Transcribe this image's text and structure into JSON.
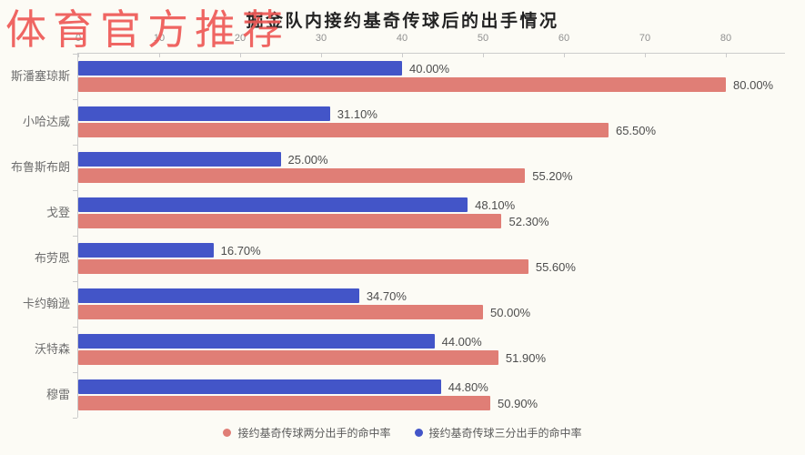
{
  "watermark": {
    "text": "体育官方推荐",
    "color": "#ee5956"
  },
  "chart_data": {
    "type": "bar",
    "orientation": "horizontal",
    "title": "掘金队内接约基奇传球后的出手情况",
    "categories": [
      "斯潘塞琼斯",
      "小哈达威",
      "布鲁斯布朗",
      "戈登",
      "布劳恩",
      "卡约翰逊",
      "沃特森",
      "穆雷"
    ],
    "series": [
      {
        "name": "接约基奇传球三分出手的命中率",
        "color": "#4355c8",
        "values": [
          40,
          31.1,
          25,
          48.1,
          16.7,
          34.7,
          44,
          44.8
        ],
        "labels": [
          "40.00%",
          "31.10%",
          "25.00%",
          "48.10%",
          "16.70%",
          "34.70%",
          "44.00%",
          "44.80%"
        ]
      },
      {
        "name": "接约基奇传球两分出手的命中率",
        "color": "#e07e76",
        "values": [
          80,
          65.5,
          55.2,
          52.3,
          55.6,
          50,
          51.9,
          50.9
        ],
        "labels": [
          "80.00%",
          "65.50%",
          "55.20%",
          "52.30%",
          "55.60%",
          "50.00%",
          "51.90%",
          "50.90%"
        ]
      }
    ],
    "x_axis": {
      "position": "top",
      "ticks": [
        0,
        10,
        20,
        30,
        40,
        50,
        60,
        70,
        80
      ],
      "max": 87.3
    },
    "grid": false,
    "legend": {
      "position": "bottom",
      "items": [
        {
          "label": "接约基奇传球两分出手的命中率",
          "color": "#e07e76"
        },
        {
          "label": "接约基奇传球三分出手的命中率",
          "color": "#4355c8"
        }
      ]
    }
  }
}
